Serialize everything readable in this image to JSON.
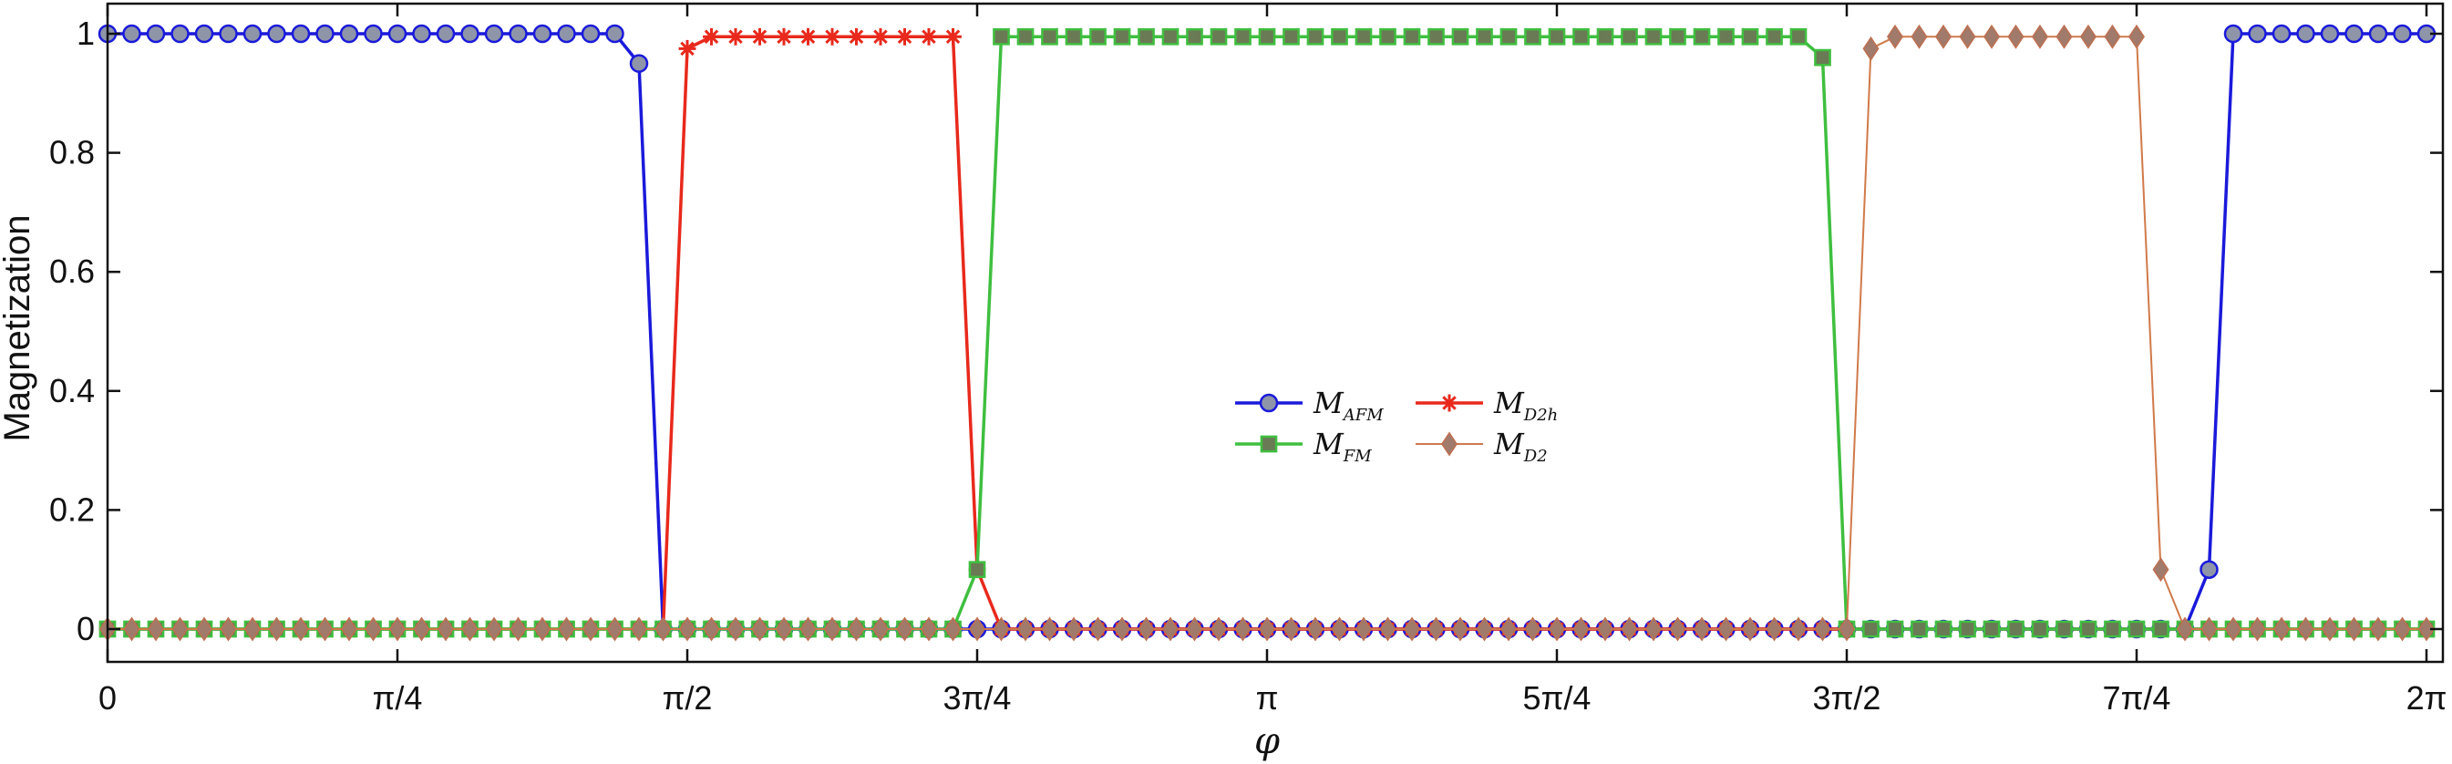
{
  "chart_data": {
    "type": "line",
    "title": "",
    "xlabel": "φ",
    "ylabel": "Magnetization",
    "xlim": [
      0,
      6.2832
    ],
    "ylim": [
      -0.05,
      1.05
    ],
    "x_tick_values": [
      0,
      0.7854,
      1.5708,
      2.3562,
      3.1416,
      3.927,
      4.7124,
      5.4978,
      6.2832
    ],
    "x_tick_labels": [
      "0",
      "π/4",
      "π/2",
      "3π/4",
      "π",
      "5π/4",
      "3π/2",
      "7π/4",
      "2π"
    ],
    "y_tick_values": [
      0,
      0.2,
      0.4,
      0.6,
      0.8,
      1
    ],
    "y_tick_labels": [
      "0",
      "0.2",
      "0.4",
      "0.6",
      "0.8",
      "1"
    ],
    "grid": false,
    "legend_position": "center",
    "series": [
      {
        "key": "afm",
        "name": "M_AFM",
        "legend_main": "M",
        "legend_sub": "AFM",
        "color": "#1a1adb",
        "marker": "circle",
        "marker_fill": "#8f95a8",
        "x_step": 0.06545,
        "x_count": 97,
        "segments": [
          {
            "from": 0,
            "to": 21,
            "value": 1.0
          },
          {
            "from": 22,
            "to": 22,
            "value": 0.95
          },
          {
            "from": 23,
            "to": 86,
            "value": 0.0
          },
          {
            "from": 87,
            "to": 87,
            "value": 0.1
          },
          {
            "from": 88,
            "to": 96,
            "value": 1.0
          }
        ]
      },
      {
        "key": "d2h",
        "name": "M_D2h",
        "legend_main": "M",
        "legend_sub": "D2h",
        "color": "#e8291c",
        "marker": "star",
        "marker_fill": "#e8291c",
        "x_step": 0.06545,
        "x_count": 97,
        "segments": [
          {
            "from": 0,
            "to": 23,
            "value": 0.0
          },
          {
            "from": 24,
            "to": 24,
            "value": 0.975
          },
          {
            "from": 25,
            "to": 35,
            "value": 0.995
          },
          {
            "from": 36,
            "to": 36,
            "value": 0.1
          },
          {
            "from": 37,
            "to": 96,
            "value": 0.0
          }
        ]
      },
      {
        "key": "fm",
        "name": "M_FM",
        "legend_main": "M",
        "legend_sub": "FM",
        "color": "#3fbf3f",
        "marker": "square",
        "marker_fill": "#6a7a55",
        "x_step": 0.06545,
        "x_count": 97,
        "segments": [
          {
            "from": 0,
            "to": 35,
            "value": 0.0
          },
          {
            "from": 36,
            "to": 36,
            "value": 0.1
          },
          {
            "from": 37,
            "to": 70,
            "value": 0.995
          },
          {
            "from": 71,
            "to": 71,
            "value": 0.96
          },
          {
            "from": 72,
            "to": 96,
            "value": 0.0
          }
        ]
      },
      {
        "key": "d2",
        "name": "M_D2",
        "legend_main": "M",
        "legend_sub": "D2",
        "color": "#d07a4a",
        "marker": "diamond",
        "marker_fill": "#a07a6a",
        "x_step": 0.06545,
        "x_count": 97,
        "segments": [
          {
            "from": 0,
            "to": 72,
            "value": 0.0
          },
          {
            "from": 73,
            "to": 73,
            "value": 0.975
          },
          {
            "from": 74,
            "to": 84,
            "value": 0.995
          },
          {
            "from": 85,
            "to": 85,
            "value": 0.1
          },
          {
            "from": 86,
            "to": 96,
            "value": 0.0
          }
        ]
      }
    ]
  }
}
